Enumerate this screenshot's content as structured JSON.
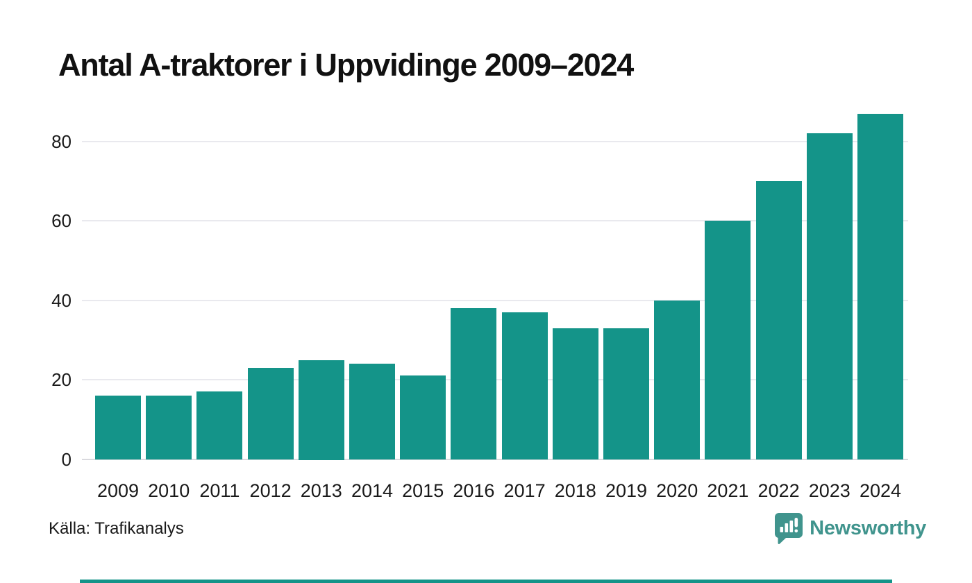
{
  "header": {
    "title": "Antal A-traktorer i Uppvidinge 2009–2024"
  },
  "footer": {
    "source_label": "Källa: Trafikanalys",
    "brand": "Newsworthy"
  },
  "colors": {
    "bar": "#149489",
    "brand_teal": "#40948d",
    "gridline": "#e9e9ee",
    "baseline": "#d9d9de",
    "title": "#111111",
    "text": "#1a1a1a",
    "bottom_strip": "#149489"
  },
  "chart_data": {
    "type": "bar",
    "title": "Antal A-traktorer i Uppvidinge 2009–2024",
    "categories": [
      "2009",
      "2010",
      "2011",
      "2012",
      "2013",
      "2014",
      "2015",
      "2016",
      "2017",
      "2018",
      "2019",
      "2020",
      "2021",
      "2022",
      "2023",
      "2024"
    ],
    "values": [
      16,
      16,
      17,
      23,
      25,
      24,
      21,
      38,
      37,
      33,
      33,
      40,
      60,
      70,
      82,
      87
    ],
    "xlabel": "",
    "ylabel": "",
    "yticks": [
      0,
      20,
      40,
      60,
      80
    ],
    "ylim": [
      0,
      88
    ],
    "grid": true,
    "legend": false,
    "source": "Källa: Trafikanalys"
  }
}
